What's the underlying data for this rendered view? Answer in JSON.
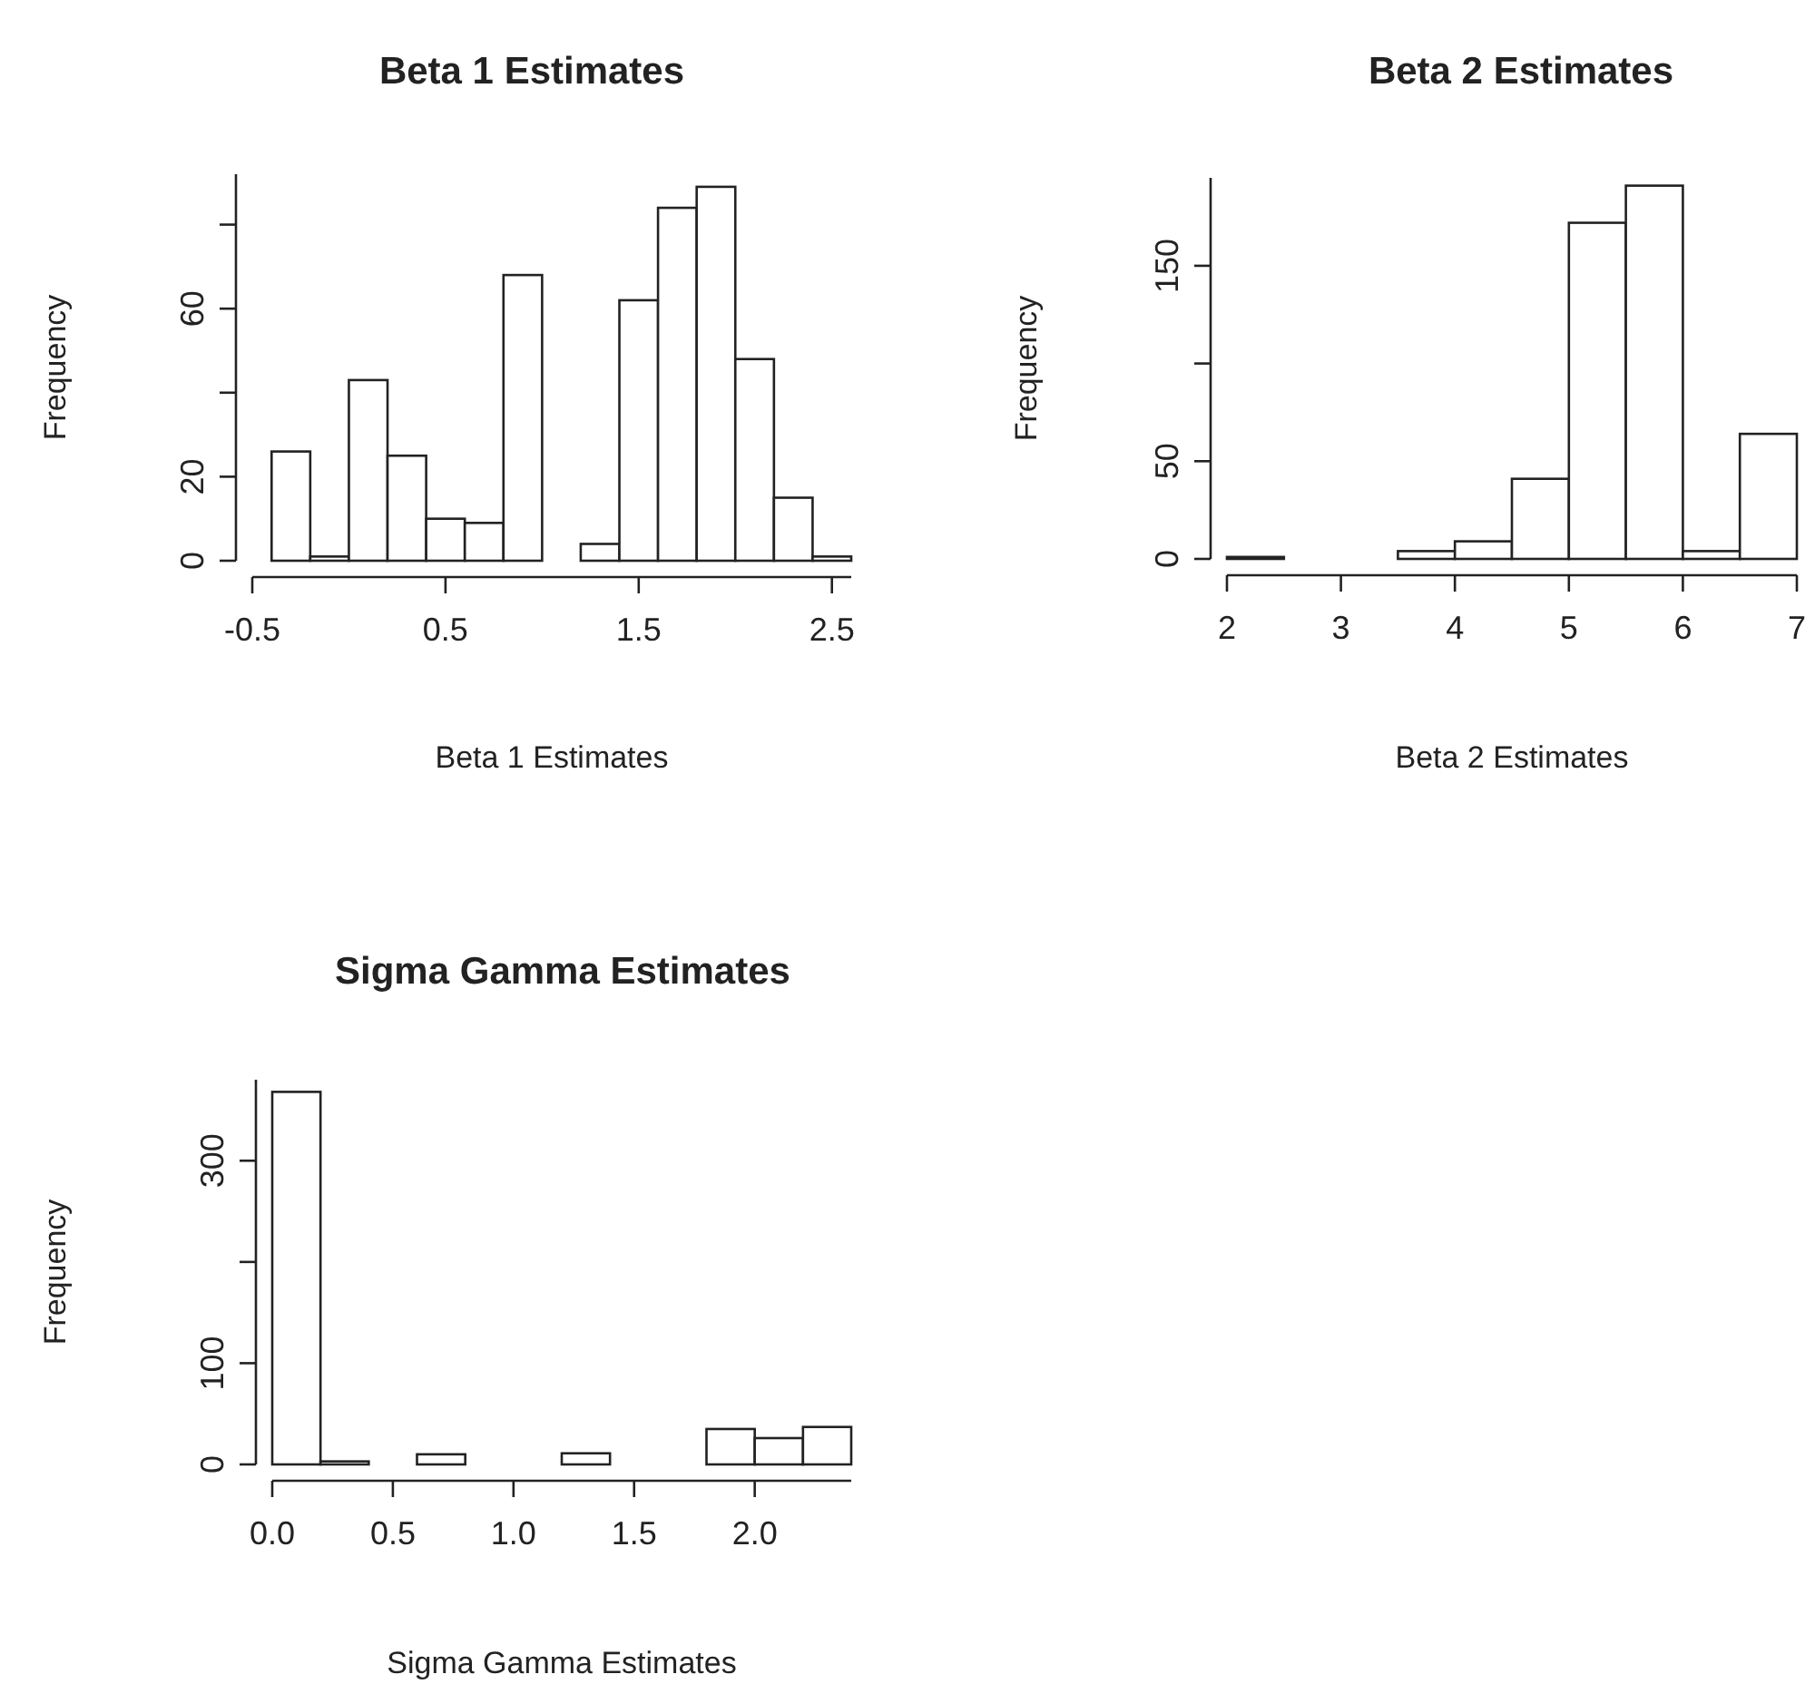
{
  "chart_data": [
    {
      "type": "histogram",
      "title": "Beta 1 Estimates",
      "xlabel": "Beta 1 Estimates",
      "ylabel": "Frequency",
      "color": "#ffffff",
      "bins": [
        -0.4,
        -0.2,
        0,
        0.2,
        0.4,
        0.6,
        0.8,
        1.0,
        1.2,
        1.4,
        1.6,
        1.8,
        2.0,
        2.2,
        2.4,
        2.6
      ],
      "values": [
        26,
        1,
        43,
        25,
        10,
        9,
        68,
        0,
        4,
        62,
        84,
        89,
        48,
        15,
        1
      ],
      "xlim": [
        -0.5,
        2.6
      ],
      "xticks": [
        -0.5,
        0.5,
        1.5,
        2.5
      ],
      "ylim": [
        0,
        92
      ],
      "yticks": [
        0,
        20,
        {
          "value": 40,
          "label": null
        },
        60,
        {
          "value": 80,
          "label": null
        }
      ]
    },
    {
      "type": "histogram",
      "title": "Beta 2 Estimates",
      "xlabel": "Beta 2 Estimates",
      "ylabel": "Frequency",
      "color": "#ffffff",
      "bins": [
        2,
        2.5,
        3,
        3.5,
        4,
        4.5,
        5,
        5.5,
        6,
        6.5,
        7
      ],
      "values": [
        1,
        0,
        0,
        4,
        9,
        41,
        172,
        191,
        4,
        64
      ],
      "xlim": [
        2,
        7
      ],
      "xticks": [
        2,
        3,
        4,
        5,
        6,
        7
      ],
      "ylim": [
        0,
        195
      ],
      "yticks": [
        0,
        50,
        {
          "value": 100,
          "label": null
        },
        150
      ]
    },
    {
      "type": "histogram",
      "title": "Sigma Gamma Estimates",
      "xlabel": "Sigma Gamma Estimates",
      "ylabel": "Frequency",
      "color": "#ffffff",
      "bins": [
        0,
        0.2,
        0.4,
        0.6,
        0.8,
        1.0,
        1.2,
        1.4,
        1.6,
        1.8,
        2.0,
        2.2,
        2.4
      ],
      "values": [
        368,
        3,
        0,
        10,
        0,
        0,
        11,
        0,
        0,
        35,
        26,
        37
      ],
      "xlim": [
        0,
        2.4
      ],
      "xticks": [
        {
          "value": 0,
          "label": "0.0"
        },
        0.5,
        {
          "value": 1,
          "label": "1.0"
        },
        1.5,
        {
          "value": 2,
          "label": "2.0"
        }
      ],
      "ylim": [
        0,
        380
      ],
      "yticks": [
        0,
        100,
        {
          "value": 200,
          "label": null
        },
        300
      ]
    }
  ]
}
